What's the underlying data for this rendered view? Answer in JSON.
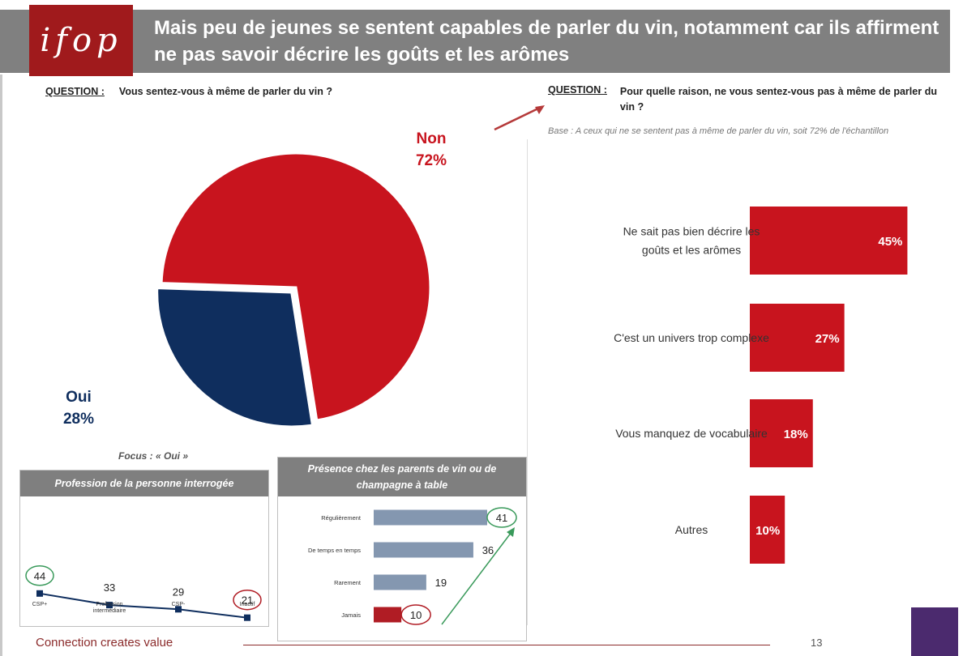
{
  "header": {
    "logo_text": "ifop",
    "title": "Mais peu de jeunes se sentent capables de parler du vin, notamment car ils affirment ne pas savoir décrire les goûts et les arômes"
  },
  "left_question": {
    "label": "QUESTION :",
    "text": "Vous sentez-vous à même de parler du vin ?"
  },
  "right_question": {
    "label": "QUESTION :",
    "text": "Pour quelle raison, ne vous sentez-vous pas à même de parler du vin ?",
    "base": "Base : A ceux qui ne se sentent pas à même de parler du vin, soit 72% de l'échantillon"
  },
  "focus_label": "Focus : « Oui »",
  "colors": {
    "red": "#c8141e",
    "navy": "#0f2e5e",
    "gray_header": "#808080",
    "steel": "#8497b0"
  },
  "chart_data": [
    {
      "type": "pie",
      "title": "Vous sentez-vous à même de parler du vin ?",
      "slices": [
        {
          "label": "Non",
          "value": 72,
          "display": "72%",
          "color": "#c8141e"
        },
        {
          "label": "Oui",
          "value": 28,
          "display": "28%",
          "color": "#0f2e5e"
        }
      ]
    },
    {
      "type": "bar",
      "orientation": "horizontal",
      "title": "Pour quelle raison, ne vous sentez-vous pas à même de parler du vin ?",
      "categories": [
        "Ne sait pas bien décrire les goûts et les arômes",
        "C'est un univers trop complexe",
        "Vous manquez de vocabulaire",
        "Autres"
      ],
      "label_lines": [
        [
          "Ne sait pas bien décrire les",
          "goûts et les arômes"
        ],
        [
          "C'est un univers trop complexe"
        ],
        [
          "Vous manquez de vocabulaire"
        ],
        [
          "Autres"
        ]
      ],
      "values": [
        45,
        27,
        18,
        10
      ],
      "display": [
        "45%",
        "27%",
        "18%",
        "10%"
      ],
      "xlim": [
        0,
        50
      ]
    },
    {
      "type": "line",
      "title": "Profession de la personne interrogée",
      "categories": [
        "CSP+",
        "Profession intermédiaire",
        "CSP-",
        "Inactif"
      ],
      "category_lines": [
        [
          "CSP+"
        ],
        [
          "Profession",
          "intermédiaire"
        ],
        [
          "CSP-"
        ],
        [
          "Inactif"
        ]
      ],
      "values": [
        44,
        33,
        29,
        21
      ],
      "highlight": {
        "max_index": 0,
        "min_index": 3
      },
      "ylim": [
        0,
        100
      ]
    },
    {
      "type": "bar",
      "orientation": "horizontal",
      "title": "Présence chez les parents de vin ou de champagne à table",
      "title_lines": [
        "Présence chez les parents de vin ou de",
        "champagne à table"
      ],
      "categories": [
        "Régulièrement",
        "De temps en temps",
        "Rarement",
        "Jamais"
      ],
      "values": [
        41,
        36,
        19,
        10
      ],
      "bar_colors": [
        "#8497b0",
        "#8497b0",
        "#8497b0",
        "#b01c24"
      ],
      "highlight": {
        "max_index": 0,
        "min_index": 3
      },
      "xlim": [
        0,
        45
      ]
    }
  ],
  "footer": {
    "tagline": "Connection creates value",
    "page_number": "13"
  }
}
